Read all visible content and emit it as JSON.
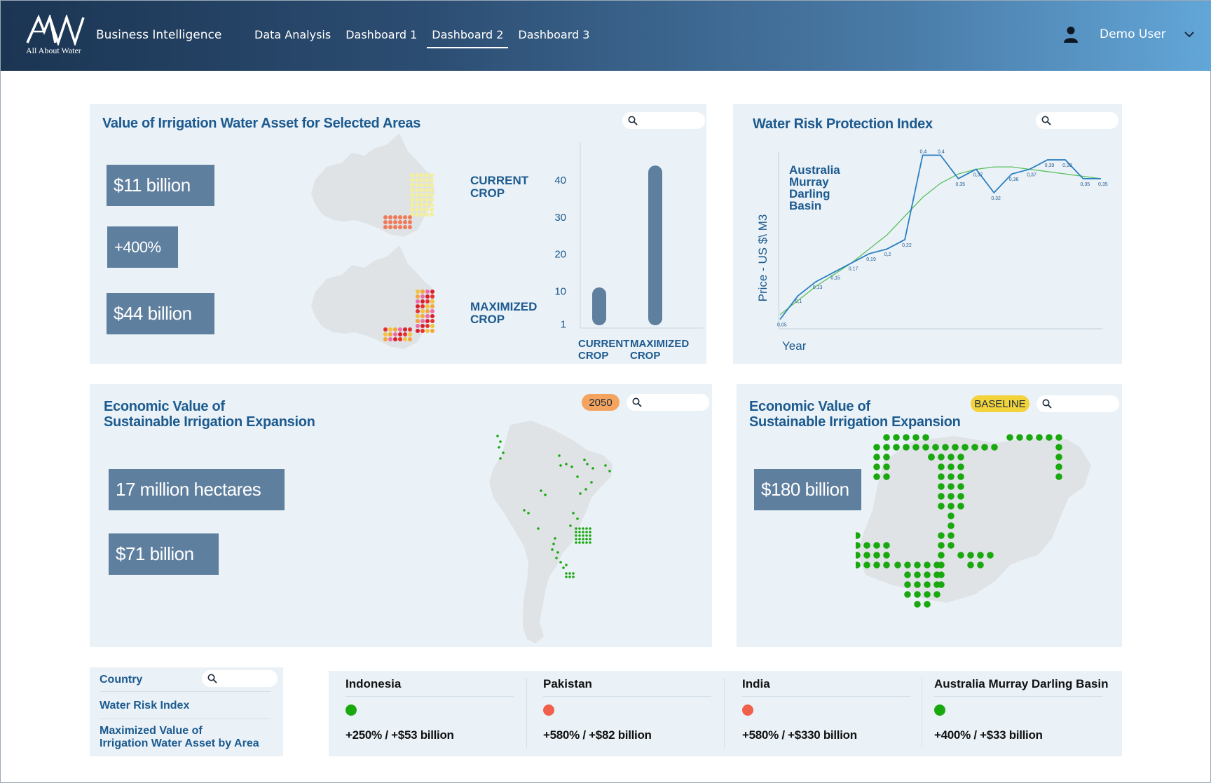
{
  "header": {
    "logo_mark": "AW",
    "logo_text": "All About Water",
    "app_title": "Business Intelligence",
    "nav": [
      "Data Analysis",
      "Dashboard 1",
      "Dashboard 2",
      "Dashboard 3"
    ],
    "active_nav": "Dashboard 2",
    "user_name": "Demo User"
  },
  "irrigation_panel": {
    "title": "Value of Irrigation Water Asset for Selected Areas",
    "metrics": [
      "$11 billion",
      "+400%",
      "$44 billion"
    ],
    "current_label": "CURRENT CROP",
    "maximized_label": "MAXIMIZED CROP"
  },
  "risk_panel": {
    "title": "Water Risk Protection Index"
  },
  "sa_panel": {
    "title_line1": "Economic Value of",
    "title_line2": "Sustainable Irrigation Expansion",
    "badge": "2050",
    "metrics": [
      "17 million hectares",
      "$71 billion"
    ]
  },
  "ng_panel": {
    "title_line1": "Economic Value of",
    "title_line2": "Sustainable Irrigation Expansion",
    "badge": "BASELINE",
    "metric": "$180 billion"
  },
  "filters": {
    "items": [
      "Country",
      "Water Risk Index",
      "Maximized Value of",
      "Irrigation Water Asset by Area"
    ]
  },
  "countries": [
    {
      "name": "Indonesia",
      "status_color": "#1aa80f",
      "value": "+250% / +$53 billion"
    },
    {
      "name": "Pakistan",
      "status_color": "#f0604a",
      "value": "+580% / +$82 billion"
    },
    {
      "name": "India",
      "status_color": "#f0604a",
      "value": "+580% / +$330 billion"
    },
    {
      "name": "Australia Murray Darling Basin",
      "status_color": "#1aa80f",
      "value": "+400% / +$33 billion"
    }
  ],
  "colors": {
    "accent": "#1d5a8e",
    "panel_bg": "#eaf2f8",
    "metric_bg": "#5f7f9f",
    "badge_2050": "#f4a45e",
    "badge_baseline": "#f2d33b",
    "map_dot": "#1aa80f"
  },
  "chart_data": [
    {
      "type": "bar",
      "categories": [
        "CURRENT CROP",
        "MAXIMIZED CROP"
      ],
      "values": [
        11,
        44
      ],
      "yticks": [
        1,
        10,
        20,
        30,
        40
      ],
      "ylim": [
        0,
        48
      ]
    },
    {
      "type": "line",
      "title": "",
      "xlabel": "Year",
      "ylabel": "Price -  US $\\ M3",
      "annotation": "Australia Murray Darling Basin",
      "series": [
        {
          "values": [
            0.05,
            0.1,
            0.13,
            0.15,
            0.17,
            0.19,
            0.2,
            0.22,
            0.4,
            0.4,
            0.35,
            0.37,
            0.32,
            0.36,
            0.37,
            0.39,
            0.39,
            0.35,
            0.35
          ],
          "labels": [
            "0,05",
            "0,1",
            "0,13",
            "0,15",
            "0,17",
            "0,19",
            "0,2",
            "0,22",
            "0,4",
            "0,4",
            "0,35",
            "0,37",
            "0,32",
            "0,36",
            "0,37",
            "0,39",
            "0,39",
            "0,35",
            "0,35"
          ]
        },
        {
          "values": [
            0.06,
            0.09,
            0.12,
            0.145,
            0.17,
            0.2,
            0.23,
            0.27,
            0.31,
            0.34,
            0.36,
            0.37,
            0.375,
            0.375,
            0.37,
            0.365,
            0.36,
            0.355,
            0.35
          ],
          "style": "trend"
        }
      ],
      "ylim": [
        0.03,
        0.42
      ]
    }
  ]
}
